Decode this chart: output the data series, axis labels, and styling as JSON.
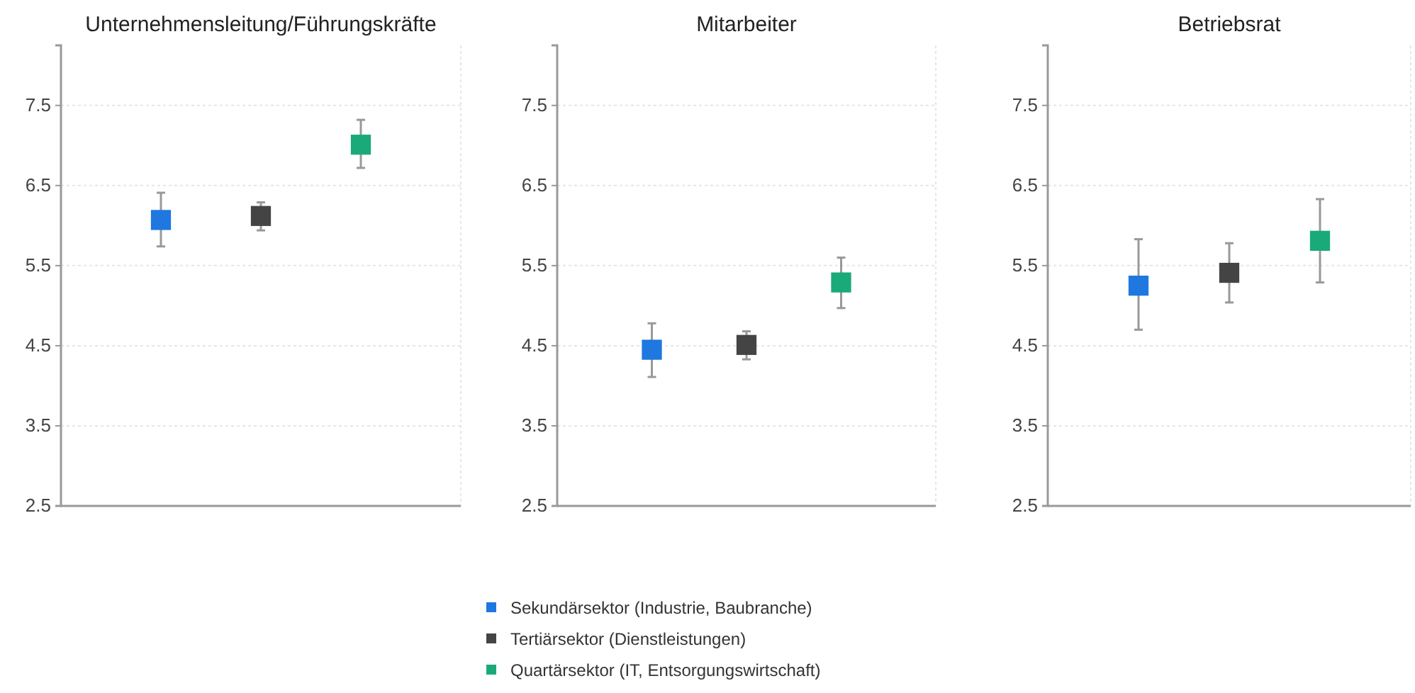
{
  "chart_data": [
    {
      "type": "scatter",
      "title": "Unternehmensleitung/Führungskräfte",
      "categories": [
        null,
        null,
        null
      ],
      "ylim": [
        2.5,
        8.25
      ],
      "yticks": [
        2.5,
        3.5,
        4.5,
        5.5,
        6.5,
        7.5
      ],
      "grid": true,
      "marker": "square",
      "tick_labels": "y",
      "legend": "bottom",
      "series": [
        {
          "name": "Sekundärsektor (Industrie, Baubranche)",
          "color": "#1f77e0",
          "values": [
            6.07,
            null,
            null
          ],
          "errors": [
            [
              5.74,
              6.41
            ],
            null,
            null
          ]
        },
        {
          "name": "Tertiärsektor (Dienstleistungen)",
          "color": "#444444",
          "values": [
            null,
            6.12,
            null
          ],
          "errors": [
            null,
            [
              5.94,
              6.29
            ],
            null
          ]
        },
        {
          "name": "Quartärsektor (IT, Entsorgungswirtschaft)",
          "color": "#1aaa7a",
          "values": [
            null,
            null,
            7.01
          ],
          "errors": [
            null,
            null,
            [
              6.72,
              7.32
            ]
          ]
        }
      ]
    },
    {
      "type": "scatter",
      "title": "Mitarbeiter",
      "categories": [
        null,
        null,
        null
      ],
      "ylim": [
        2.5,
        8.25
      ],
      "yticks": [
        2.5,
        3.5,
        4.5,
        5.5,
        6.5,
        7.5
      ],
      "grid": true,
      "marker": "square",
      "tick_labels": "y",
      "series": [
        {
          "color": "#1f77e0",
          "values": [
            4.45,
            null,
            null
          ],
          "errors": [
            [
              4.11,
              4.78
            ],
            null,
            null
          ]
        },
        {
          "color": "#444444",
          "values": [
            null,
            4.51,
            null
          ],
          "errors": [
            null,
            [
              4.33,
              4.68
            ],
            null
          ]
        },
        {
          "color": "#1aaa7a",
          "values": [
            null,
            null,
            5.29
          ],
          "errors": [
            null,
            null,
            [
              4.97,
              5.6
            ]
          ]
        }
      ]
    },
    {
      "type": "scatter",
      "title": "Betriebsrat",
      "categories": [
        null,
        null,
        null
      ],
      "ylim": [
        2.5,
        8.25
      ],
      "yticks": [
        2.5,
        3.5,
        4.5,
        5.5,
        6.5,
        7.5
      ],
      "grid": true,
      "marker": "square",
      "tick_labels": "y",
      "series": [
        {
          "color": "#1f77e0",
          "values": [
            5.25,
            null,
            null
          ],
          "errors": [
            [
              4.7,
              5.83
            ],
            null,
            null
          ]
        },
        {
          "color": "#444444",
          "values": [
            null,
            5.41,
            null
          ],
          "errors": [
            null,
            [
              5.04,
              5.78
            ],
            null
          ]
        },
        {
          "color": "#1aaa7a",
          "values": [
            null,
            null,
            5.81
          ],
          "errors": [
            null,
            null,
            [
              5.29,
              6.33
            ]
          ]
        }
      ]
    }
  ]
}
